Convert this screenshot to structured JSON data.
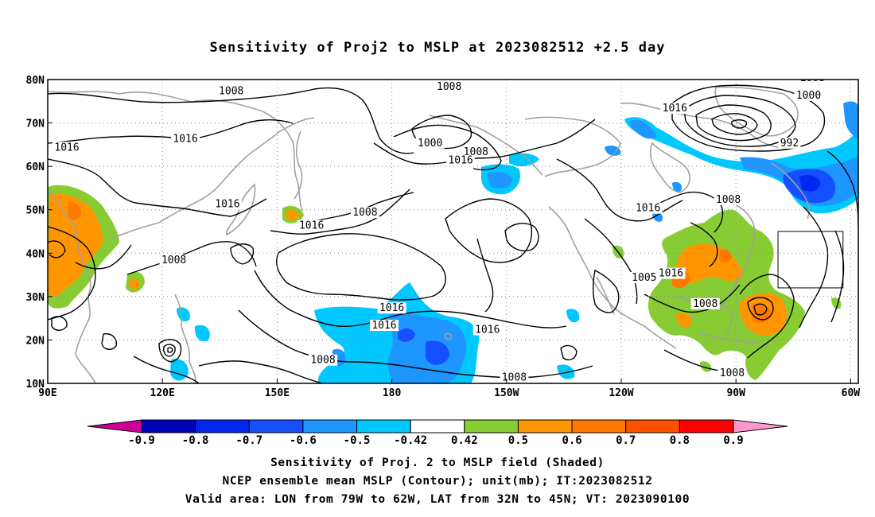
{
  "title": "Sensitivity of Proj2 to MSLP at 2023082512 +2.5 day",
  "captions": {
    "line1": "Sensitivity of Proj. 2 to MSLP field (Shaded)",
    "line2": "NCEP ensemble mean MSLP (Contour); unit(mb); IT:2023082512",
    "line3": "Valid area: LON from 79W to 62W, LAT from 32N to 45N; VT: 2023090100"
  },
  "map": {
    "lon_range": [
      90,
      302
    ],
    "lat_range": [
      10,
      80
    ],
    "x_ticks": [
      {
        "lon": 90,
        "label": "90E"
      },
      {
        "lon": 120,
        "label": "120E"
      },
      {
        "lon": 150,
        "label": "150E"
      },
      {
        "lon": 180,
        "label": "180"
      },
      {
        "lon": 210,
        "label": "150W"
      },
      {
        "lon": 240,
        "label": "120W"
      },
      {
        "lon": 270,
        "label": "90W"
      },
      {
        "lon": 300,
        "label": "60W"
      }
    ],
    "y_ticks": [
      {
        "lat": 80,
        "label": "80N"
      },
      {
        "lat": 70,
        "label": "70N"
      },
      {
        "lat": 60,
        "label": "60N"
      },
      {
        "lat": 50,
        "label": "50N"
      },
      {
        "lat": 40,
        "label": "40N"
      },
      {
        "lat": 30,
        "label": "30N"
      },
      {
        "lat": 20,
        "label": "20N"
      },
      {
        "lat": 10,
        "label": "10N"
      }
    ],
    "valid_area": {
      "lon_min": 281,
      "lon_max": 298,
      "lat_min": 32,
      "lat_max": 45
    },
    "contour_labels": [
      {
        "text": "1008",
        "lon": 138,
        "lat": 77
      },
      {
        "text": "1016",
        "lon": 95,
        "lat": 64
      },
      {
        "text": "1016",
        "lon": 126,
        "lat": 66
      },
      {
        "text": "1016",
        "lon": 137,
        "lat": 51
      },
      {
        "text": "1016",
        "lon": 159,
        "lat": 46
      },
      {
        "text": "1008",
        "lon": 123,
        "lat": 38
      },
      {
        "text": "1008",
        "lon": 173,
        "lat": 49
      },
      {
        "text": "1008",
        "lon": 195,
        "lat": 78
      },
      {
        "text": "1000",
        "lon": 190,
        "lat": 65
      },
      {
        "text": "1008",
        "lon": 202,
        "lat": 63
      },
      {
        "text": "1016",
        "lon": 198,
        "lat": 61
      },
      {
        "text": "1016",
        "lon": 254,
        "lat": 73
      },
      {
        "text": "1008",
        "lon": 290,
        "lat": 80
      },
      {
        "text": "1000",
        "lon": 289,
        "lat": 76
      },
      {
        "text": "992",
        "lon": 284,
        "lat": 65
      },
      {
        "text": "1016",
        "lon": 311,
        "lat": 64
      },
      {
        "text": "1008",
        "lon": 268,
        "lat": 52
      },
      {
        "text": "1016",
        "lon": 247,
        "lat": 50
      },
      {
        "text": "1005",
        "lon": 246,
        "lat": 34
      },
      {
        "text": "1016",
        "lon": 253,
        "lat": 35
      },
      {
        "text": "1008",
        "lon": 262,
        "lat": 28
      },
      {
        "text": "1016",
        "lon": 180,
        "lat": 27
      },
      {
        "text": "1016",
        "lon": 178,
        "lat": 23
      },
      {
        "text": "1016",
        "lon": 205,
        "lat": 22
      },
      {
        "text": "1008",
        "lon": 162,
        "lat": 15
      },
      {
        "text": "1008",
        "lon": 212,
        "lat": 11
      },
      {
        "text": "1008",
        "lon": 269,
        "lat": 12
      }
    ],
    "colors": {
      "neg_09": "#cc0099",
      "neg_08": "#0000b4",
      "neg_07": "#0028f0",
      "neg_06": "#1450ff",
      "neg_05": "#1e96ff",
      "neg_042": "#00c8ff",
      "pos_042": "#88cc33",
      "pos_05": "#ff9600",
      "pos_06": "#ff7800",
      "pos_07": "#ff5000",
      "pos_08": "#ff0000",
      "pos_09": "#ff99cc"
    }
  },
  "colorbar": {
    "labels": [
      "-0.9",
      "-0.8",
      "-0.7",
      "-0.6",
      "-0.5",
      "-0.42",
      "0.42",
      "0.5",
      "0.6",
      "0.7",
      "0.8",
      "0.9"
    ],
    "bins": [
      {
        "color": "#0000b4"
      },
      {
        "color": "#0028f0"
      },
      {
        "color": "#1450ff"
      },
      {
        "color": "#1e96ff"
      },
      {
        "color": "#00c8ff"
      },
      {
        "color": "#ffffff"
      },
      {
        "color": "#88cc33"
      },
      {
        "color": "#ff9600"
      },
      {
        "color": "#ff7800"
      },
      {
        "color": "#ff5000"
      },
      {
        "color": "#ff0000"
      }
    ],
    "left_arrow_color": "#cc0099",
    "right_arrow_color": "#ff99cc"
  }
}
